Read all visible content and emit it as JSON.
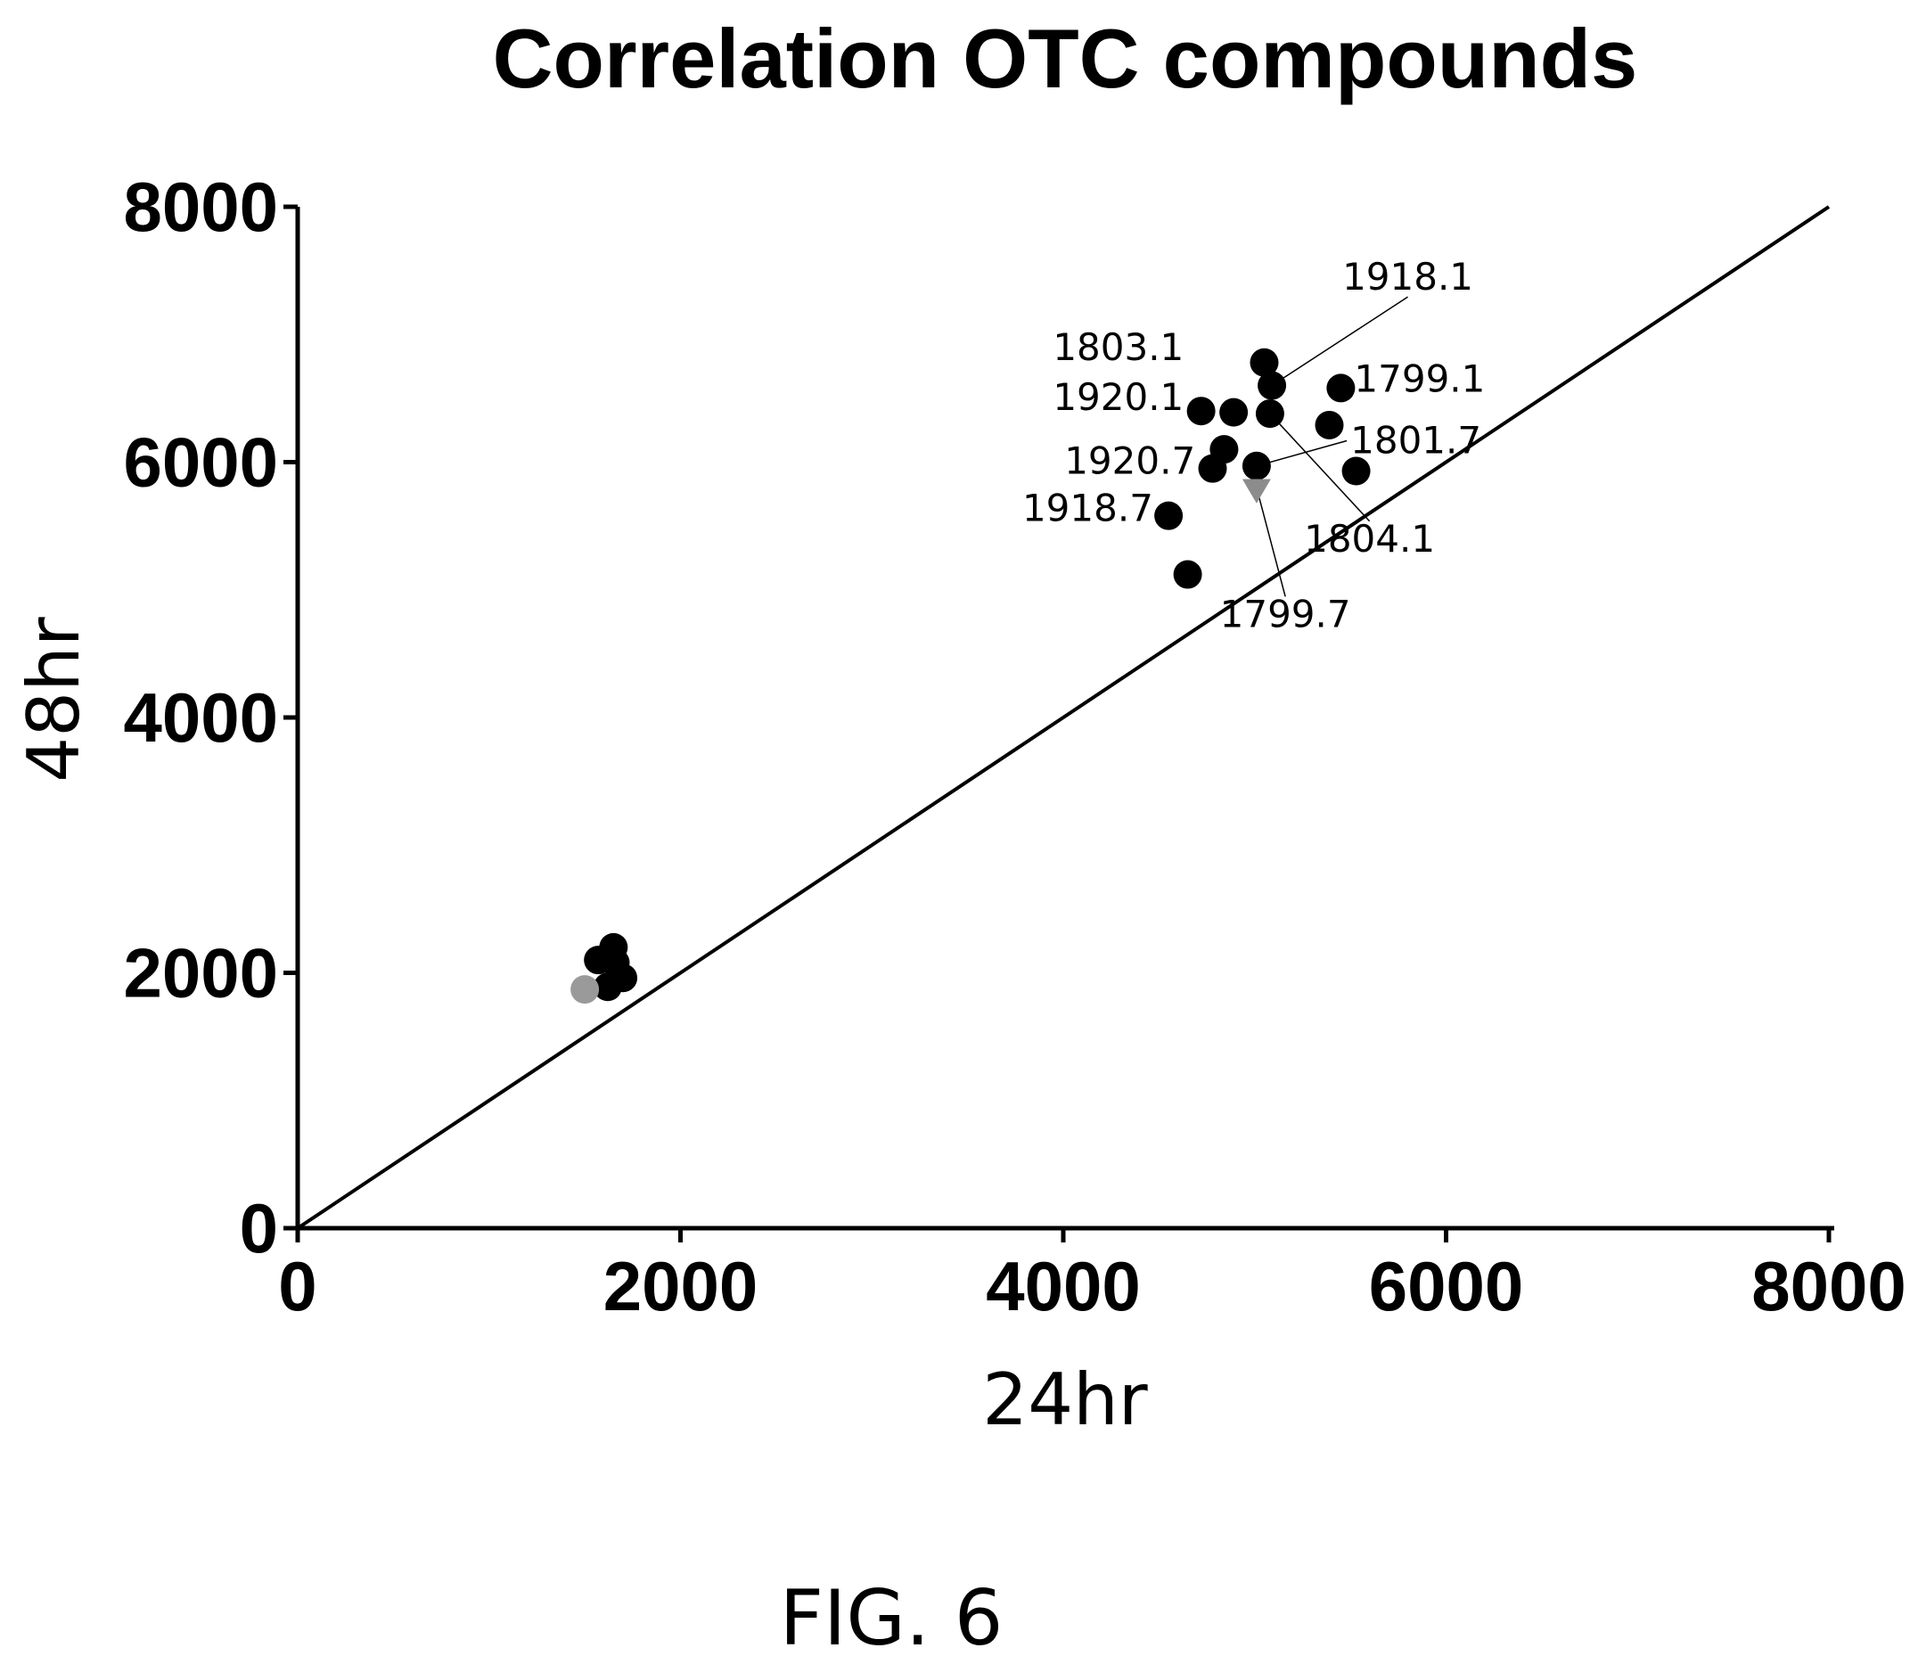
{
  "chart_data": {
    "type": "scatter",
    "title": "Correlation OTC compounds",
    "xlabel": "24hr",
    "ylabel": "48hr",
    "xlim": [
      0,
      8000
    ],
    "ylim": [
      0,
      8000
    ],
    "xticks": [
      "0",
      "2000",
      "4000",
      "6000",
      "8000"
    ],
    "yticks": [
      "0",
      "2000",
      "4000",
      "6000",
      "8000"
    ],
    "grid": false,
    "reference_line": {
      "from": [
        0,
        0
      ],
      "to": [
        8000,
        8000
      ]
    },
    "series": [
      {
        "color": "#000000",
        "marker": "circle",
        "points": [
          {
            "x": 1650,
            "y": 2200
          },
          {
            "x": 1570,
            "y": 2100
          },
          {
            "x": 1660,
            "y": 2080
          },
          {
            "x": 1700,
            "y": 1960
          },
          {
            "x": 1620,
            "y": 1890
          },
          {
            "x": 5050,
            "y": 6780
          },
          {
            "x": 5090,
            "y": 6600
          },
          {
            "x": 4720,
            "y": 6400
          },
          {
            "x": 4890,
            "y": 6390
          },
          {
            "x": 5080,
            "y": 6380
          },
          {
            "x": 5450,
            "y": 6580
          },
          {
            "x": 5390,
            "y": 6290
          },
          {
            "x": 4840,
            "y": 6100
          },
          {
            "x": 4780,
            "y": 5950
          },
          {
            "x": 5010,
            "y": 5970
          },
          {
            "x": 5530,
            "y": 5930
          },
          {
            "x": 4550,
            "y": 5580
          },
          {
            "x": 4650,
            "y": 5120
          }
        ]
      },
      {
        "color": "#9a9a9a",
        "marker": "circle",
        "points": [
          {
            "x": 1500,
            "y": 1870
          }
        ]
      },
      {
        "color": "#8c8c8c",
        "marker": "triangle-down",
        "points": [
          {
            "x": 5010,
            "y": 5800
          }
        ]
      }
    ],
    "annotations": [
      {
        "text": "1918.1",
        "label_at": [
          5800,
          7350
        ],
        "anchor": "middle",
        "target": [
          5090,
          6600
        ]
      },
      {
        "text": "1803.1",
        "label_at": [
          4630,
          6800
        ],
        "anchor": "end",
        "target": null
      },
      {
        "text": "1799.1",
        "label_at": [
          5520,
          6550
        ],
        "anchor": "start",
        "target": null
      },
      {
        "text": "1920.1",
        "label_at": [
          4630,
          6410
        ],
        "anchor": "end",
        "target": null
      },
      {
        "text": "1801.7",
        "label_at": [
          5500,
          6070
        ],
        "anchor": "start",
        "target": [
          5010,
          5970
        ]
      },
      {
        "text": "1920.7",
        "label_at": [
          4690,
          5910
        ],
        "anchor": "end",
        "target": null
      },
      {
        "text": "1918.7",
        "label_at": [
          4470,
          5540
        ],
        "anchor": "end",
        "target": null
      },
      {
        "text": "1804.1",
        "label_at": [
          5600,
          5300
        ],
        "anchor": "middle",
        "target": [
          5080,
          6380
        ]
      },
      {
        "text": "1799.7",
        "label_at": [
          5160,
          4710
        ],
        "anchor": "middle",
        "target": [
          5010,
          5800
        ]
      }
    ]
  },
  "caption": "FIG. 6"
}
